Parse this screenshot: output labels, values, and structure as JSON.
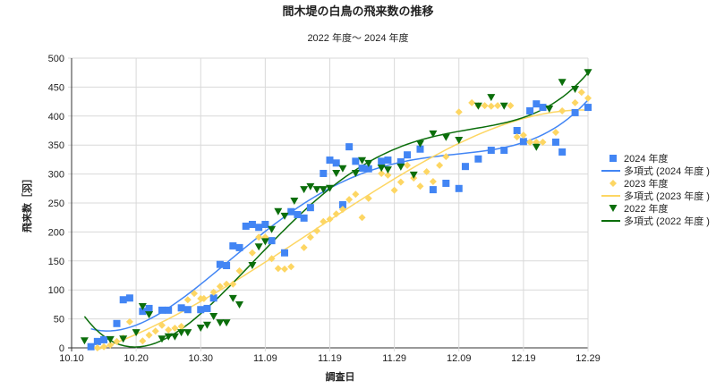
{
  "chart_data": {
    "type": "scatter",
    "title": "間木堤の白鳥の飛来数の推移",
    "subtitle": "2022 年度～ 2024 年度",
    "xlabel": "調査日",
    "ylabel": "飛来数［羽］",
    "x_unit": "days since 10.10",
    "xlim": [
      0,
      80
    ],
    "ylim": [
      0,
      500
    ],
    "x_ticks": [
      {
        "value": 0,
        "label": "10.10"
      },
      {
        "value": 10,
        "label": "10.20"
      },
      {
        "value": 20,
        "label": "10.30"
      },
      {
        "value": 30,
        "label": "11.09"
      },
      {
        "value": 40,
        "label": "11.19"
      },
      {
        "value": 50,
        "label": "11.29"
      },
      {
        "value": 60,
        "label": "12.09"
      },
      {
        "value": 70,
        "label": "12.19"
      },
      {
        "value": 80,
        "label": "12.29"
      }
    ],
    "y_ticks": [
      0,
      50,
      100,
      150,
      200,
      250,
      300,
      350,
      400,
      450,
      500
    ],
    "grid": true,
    "legend_position": "right",
    "trendline": "polynomial",
    "series": [
      {
        "name": "2024 年度",
        "trend_name": "多項式 (2024 年度 )",
        "color": "#4285f4",
        "marker": "square",
        "x": [
          3,
          4,
          5,
          7,
          8,
          9,
          11,
          12,
          14,
          15,
          17,
          18,
          20,
          21,
          22,
          23,
          24,
          25,
          26,
          27,
          28,
          29,
          30,
          31,
          33,
          34,
          35,
          36,
          37,
          39,
          40,
          41,
          42,
          43,
          44,
          45,
          46,
          48,
          49,
          51,
          52,
          54,
          56,
          58,
          60,
          61,
          63,
          65,
          67,
          69,
          70,
          71,
          72,
          73,
          75,
          76,
          78,
          80
        ],
        "y": [
          2,
          11,
          14,
          42,
          83,
          86,
          63,
          68,
          65,
          65,
          69,
          66,
          66,
          68,
          86,
          144,
          142,
          176,
          173,
          210,
          213,
          208,
          213,
          185,
          164,
          235,
          230,
          224,
          242,
          301,
          324,
          319,
          247,
          347,
          322,
          310,
          309,
          322,
          324,
          321,
          333,
          343,
          273,
          284,
          275,
          313,
          326,
          341,
          341,
          375,
          356,
          409,
          421,
          415,
          355,
          338,
          406,
          415
        ]
      },
      {
        "name": "2023 年度",
        "trend_name": "多項式 (2023 年度 )",
        "color": "#fdd663",
        "marker": "diamond",
        "x": [
          4,
          5,
          6,
          7,
          8,
          9,
          11,
          12,
          13,
          14,
          15,
          16,
          17,
          18,
          19,
          20,
          20.5,
          22,
          23,
          24,
          25,
          26,
          28,
          29,
          30,
          31,
          32,
          33,
          34,
          36,
          37,
          38,
          39,
          40,
          41,
          42,
          43,
          44,
          45,
          46,
          48,
          49,
          50,
          51,
          52,
          53,
          54,
          55,
          56,
          57,
          58,
          60,
          62,
          63,
          64,
          65,
          66,
          68,
          69,
          70,
          71,
          72,
          73,
          75,
          76,
          78,
          79,
          80
        ],
        "y": [
          0,
          2,
          5,
          11,
          17,
          45,
          12,
          22,
          29,
          39,
          31,
          34,
          37,
          83,
          94,
          85,
          85,
          96,
          106,
          110,
          110,
          133,
          164,
          191,
          191,
          154,
          137,
          136,
          140,
          173,
          191,
          202,
          218,
          222,
          231,
          239,
          256,
          265,
          225,
          258,
          301,
          298,
          272,
          286,
          315,
          293,
          279,
          304,
          287,
          315,
          330,
          407,
          423,
          418,
          418,
          417,
          418,
          418,
          364,
          367,
          355,
          355,
          355,
          372,
          409,
          423,
          441,
          431
        ]
      },
      {
        "name": "2022 年度",
        "trend_name": "多項式 (2022 年度 )",
        "color": "#0b6e0b",
        "marker": "triangle-down",
        "x": [
          2,
          6,
          8,
          10,
          11,
          12,
          14,
          15,
          16,
          17,
          18,
          20,
          21,
          22,
          23,
          24,
          25,
          26,
          28,
          29,
          30,
          31,
          32,
          33,
          34.5,
          36,
          37,
          38,
          39,
          40,
          41,
          42,
          44,
          45,
          46,
          48,
          49,
          51,
          53,
          54,
          56,
          58,
          60,
          63,
          65,
          67,
          72,
          74,
          76,
          78,
          80
        ],
        "y": [
          12,
          14,
          15,
          26,
          71,
          57,
          15,
          19,
          19,
          26,
          26,
          34,
          39,
          54,
          43,
          43,
          85,
          74,
          142,
          174,
          183,
          204,
          235,
          227,
          253,
          273,
          278,
          273,
          273,
          275,
          301,
          309,
          301,
          323,
          318,
          310,
          307,
          312,
          298,
          352,
          369,
          363,
          358,
          417,
          432,
          417,
          346,
          412,
          458,
          446,
          475
        ]
      }
    ]
  }
}
